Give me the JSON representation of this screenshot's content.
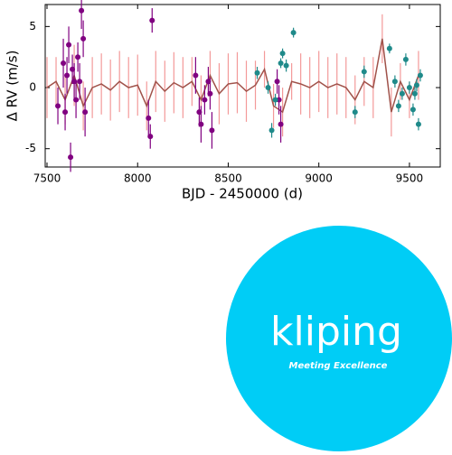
{
  "chart_data": {
    "type": "scatter",
    "xlabel": "BJD - 2450000 (d)",
    "ylabel": "Δ RV  (m/s)",
    "xlim": [
      7490,
      9670
    ],
    "ylim": [
      -6.5,
      6.8
    ],
    "xticks": [
      7500,
      8000,
      8500,
      9000,
      9500
    ],
    "yticks": [
      -5,
      0,
      5
    ],
    "model": {
      "color": "#a0524a",
      "band_color": "#f08080",
      "x": [
        7500,
        7550,
        7600,
        7650,
        7700,
        7750,
        7800,
        7850,
        7900,
        7950,
        8000,
        8050,
        8100,
        8150,
        8200,
        8250,
        8300,
        8350,
        8400,
        8450,
        8500,
        8550,
        8600,
        8650,
        8700,
        8750,
        8800,
        8850,
        8900,
        8950,
        9000,
        9050,
        9100,
        9150,
        9200,
        9250,
        9300,
        9350,
        9400,
        9450,
        9500,
        9550
      ],
      "values": [
        0,
        0.5,
        -1,
        1,
        -1.5,
        0,
        0.3,
        -0.2,
        0.5,
        0,
        0.2,
        -1.5,
        0.5,
        -0.3,
        0.4,
        0,
        0.5,
        -1,
        1,
        -0.5,
        0.3,
        0.4,
        -0.3,
        0.2,
        1.5,
        -1.5,
        -2,
        0.5,
        0.3,
        0,
        0.5,
        0,
        0.3,
        0,
        -1,
        0.5,
        0,
        4,
        -2,
        0.5,
        -1,
        1
      ],
      "errors": [
        2.5,
        2,
        2,
        2.5,
        2,
        2.5,
        2.5,
        2.5,
        2.5,
        2.5,
        2.5,
        2,
        2.5,
        2.5,
        2.5,
        2.5,
        2,
        2,
        2,
        2.5,
        2.5,
        2.5,
        2.5,
        2,
        1.5,
        1.8,
        2,
        1.5,
        2.5,
        2.5,
        2.5,
        2.5,
        2.5,
        2.5,
        2,
        2,
        2.5,
        2,
        2,
        1.5,
        1.5,
        2
      ]
    },
    "series": [
      {
        "color": "#800080",
        "x": [
          7560,
          7590,
          7600,
          7610,
          7620,
          7630,
          7640,
          7650,
          7660,
          7670,
          7680,
          7690,
          7700,
          7710,
          8060,
          8070,
          8080,
          8320,
          8340,
          8350,
          8370,
          8390,
          8400,
          8410,
          8770,
          8780,
          8790
        ],
        "values": [
          -1.5,
          2,
          -2,
          1,
          3.5,
          -5.7,
          1.5,
          0.5,
          -1,
          2.5,
          0.5,
          6.3,
          4,
          -2,
          -2.5,
          -4,
          5.5,
          1,
          -2,
          -3,
          -1,
          0.5,
          -0.5,
          -3.5,
          0.5,
          -1,
          -3
        ],
        "errors": [
          1.5,
          2,
          1.5,
          1.5,
          1.5,
          1.2,
          1.2,
          1.5,
          1.5,
          1.2,
          1.5,
          1.5,
          1.5,
          2,
          1.5,
          1,
          1,
          1.5,
          1.2,
          1.5,
          1.2,
          1.2,
          1.3,
          1.5,
          1,
          1.2,
          1.5
        ]
      },
      {
        "color": "#1f8a8a",
        "x": [
          8660,
          8720,
          8740,
          8760,
          8790,
          8800,
          8820,
          8860,
          9200,
          9250,
          9390,
          9420,
          9440,
          9460,
          9480,
          9500,
          9520,
          9530,
          9540,
          9550,
          9560
        ],
        "values": [
          1.2,
          0,
          -3.5,
          -1,
          2,
          2.8,
          1.8,
          4.5,
          -2,
          1.3,
          3.2,
          0.5,
          -1.5,
          -0.5,
          2.3,
          0,
          -1.8,
          -0.5,
          0.2,
          -3,
          1
        ],
        "errors": [
          0.5,
          0.5,
          0.6,
          0.5,
          0.4,
          0.4,
          0.5,
          0.4,
          0.5,
          0.5,
          0.4,
          0.5,
          0.5,
          0.5,
          0.5,
          0.5,
          0.5,
          0.5,
          0.5,
          0.5,
          0.5
        ]
      }
    ]
  },
  "logo": {
    "name": "kliping",
    "tagline": "Meeting Excellence"
  }
}
